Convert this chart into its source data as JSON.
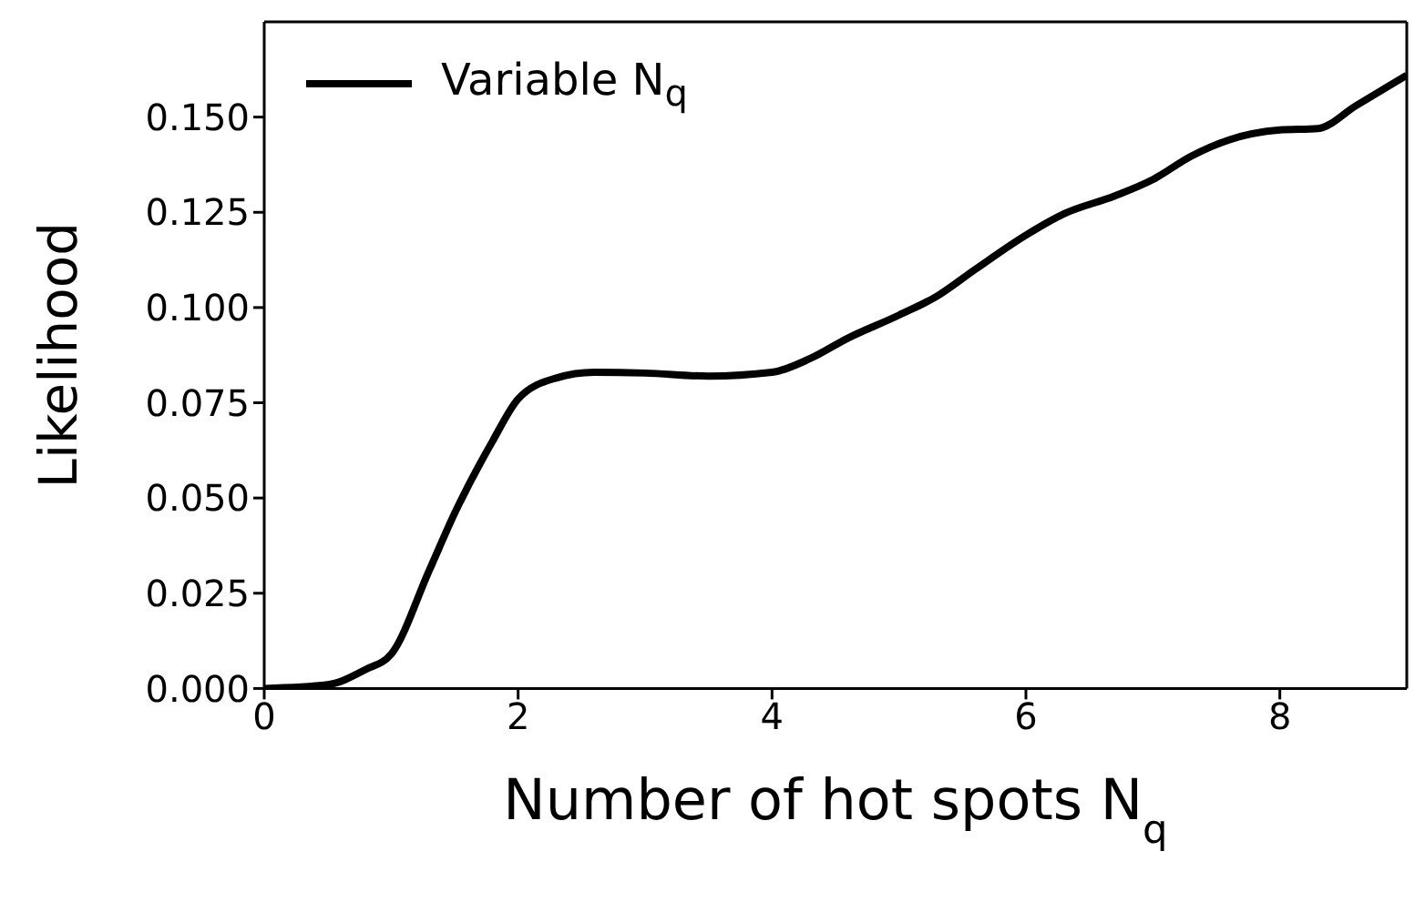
{
  "chart_data": {
    "type": "line",
    "xlabel": "Number of hot spots N$_{q}$",
    "ylabel": "Likelihood",
    "xlim": [
      0,
      9
    ],
    "ylim": [
      0,
      0.175
    ],
    "xticks": [
      0,
      2,
      4,
      6,
      8
    ],
    "yticks": [
      {
        "value": 0,
        "label": "0.000"
      },
      {
        "value": 0.025,
        "label": "0.025"
      },
      {
        "value": 0.05,
        "label": "0.050"
      },
      {
        "value": 0.075,
        "label": "0.075"
      },
      {
        "value": 0.1,
        "label": "0.100"
      },
      {
        "value": 0.125,
        "label": "0.125"
      },
      {
        "value": 0.15,
        "label": "0.150"
      }
    ],
    "grid": false,
    "legend": "top left",
    "marker": "none",
    "line_style": "solid",
    "series": [
      {
        "name": "Variable N$_{q}$",
        "color": "#000000",
        "x": [
          0,
          0.5,
          0.8,
          1,
          1.3,
          1.5,
          1.8,
          2,
          2.3,
          2.6,
          3,
          3.5,
          4,
          4.3,
          4.6,
          5,
          5.3,
          5.6,
          6,
          6.3,
          6.7,
          7,
          7.3,
          7.6,
          8,
          8.3,
          8.6,
          9
        ],
        "values": [
          0,
          0.001,
          0.005,
          0.009,
          0.031,
          0.046,
          0.065,
          0.076,
          0.0815,
          0.083,
          0.0828,
          0.082,
          0.083,
          0.0866,
          0.092,
          0.098,
          0.103,
          0.11,
          0.119,
          0.1246,
          0.1293,
          0.1336,
          0.1397,
          0.144,
          0.1466,
          0.147,
          0.153,
          0.161
        ]
      }
    ]
  }
}
